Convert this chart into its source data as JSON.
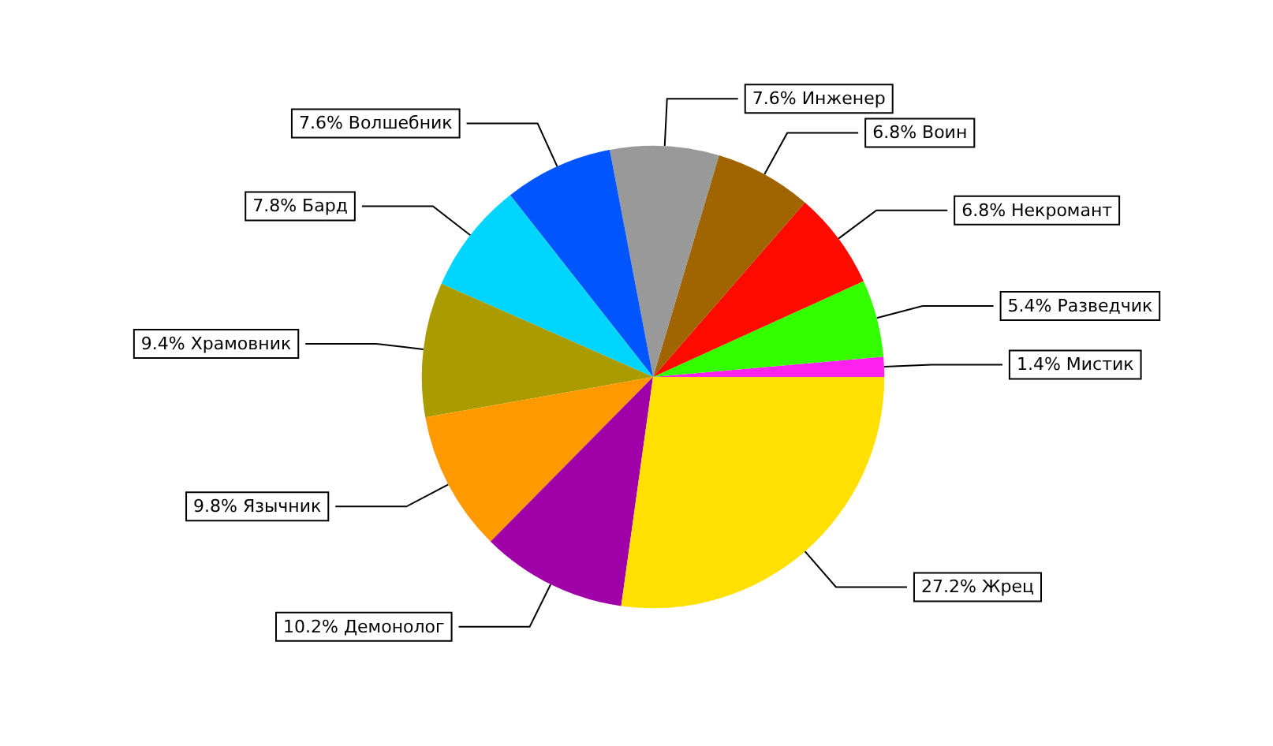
{
  "chart_data": {
    "type": "pie",
    "categories": [
      "Мистик",
      "Разведчик",
      "Некромант",
      "Воин",
      "Инженер",
      "Волшебник",
      "Бард",
      "Храмовник",
      "Язычник",
      "Демонолог",
      "Жрец"
    ],
    "values": [
      1.4,
      5.4,
      6.8,
      6.8,
      7.6,
      7.6,
      7.8,
      9.4,
      9.8,
      10.2,
      27.2
    ],
    "value_labels": [
      "1.4%",
      "5.4%",
      "6.8%",
      "6.8%",
      "7.6%",
      "7.6%",
      "7.8%",
      "9.4%",
      "9.8%",
      "10.2%",
      "27.2%"
    ],
    "colors": [
      "#ff22ee",
      "#33ff00",
      "#ff0a00",
      "#a06400",
      "#999999",
      "#0055ff",
      "#00d5ff",
      "#aa9c00",
      "#ff9900",
      "#a000a8",
      "#ffe000"
    ],
    "legend": false
  }
}
